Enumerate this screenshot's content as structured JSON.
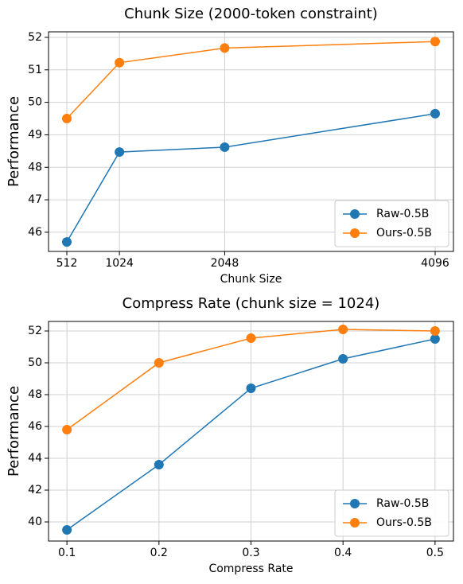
{
  "chart_data": [
    {
      "type": "line",
      "title": "Chunk Size (2000-token constraint)",
      "x_label": "Chunk Size",
      "y_label": "Performance",
      "x": [
        512,
        1024,
        2048,
        4096
      ],
      "series": [
        {
          "name": "Raw-0.5B",
          "color": "#1f77b4",
          "values": [
            45.7,
            48.47,
            48.62,
            49.65
          ]
        },
        {
          "name": "Ours-0.5B",
          "color": "#ff7f0e",
          "values": [
            49.5,
            51.22,
            51.67,
            51.87
          ]
        }
      ],
      "xlim": [
        334,
        4274
      ],
      "xticks": [
        512,
        1024,
        2048,
        4096
      ],
      "ylim": [
        45.41,
        52.17
      ],
      "yticks": [
        46,
        47,
        48,
        49,
        50,
        51,
        52
      ],
      "grid": true,
      "legend": "lower right"
    },
    {
      "type": "line",
      "title": "Compress Rate (chunk size = 1024)",
      "x_label": "Compress Rate",
      "y_label": "Performance",
      "x": [
        0.1,
        0.2,
        0.3,
        0.4,
        0.5
      ],
      "series": [
        {
          "name": "Raw-0.5B",
          "color": "#1f77b4",
          "values": [
            39.5,
            43.6,
            48.4,
            50.25,
            51.5
          ]
        },
        {
          "name": "Ours-0.5B",
          "color": "#ff7f0e",
          "values": [
            45.8,
            50.0,
            51.55,
            52.1,
            52.0
          ]
        }
      ],
      "xlim": [
        0.08,
        0.52
      ],
      "xticks": [
        0.1,
        0.2,
        0.3,
        0.4,
        0.5
      ],
      "ylim": [
        38.8,
        52.6
      ],
      "yticks": [
        40,
        42,
        44,
        46,
        48,
        50,
        52
      ],
      "grid": true,
      "legend": "lower right"
    }
  ]
}
